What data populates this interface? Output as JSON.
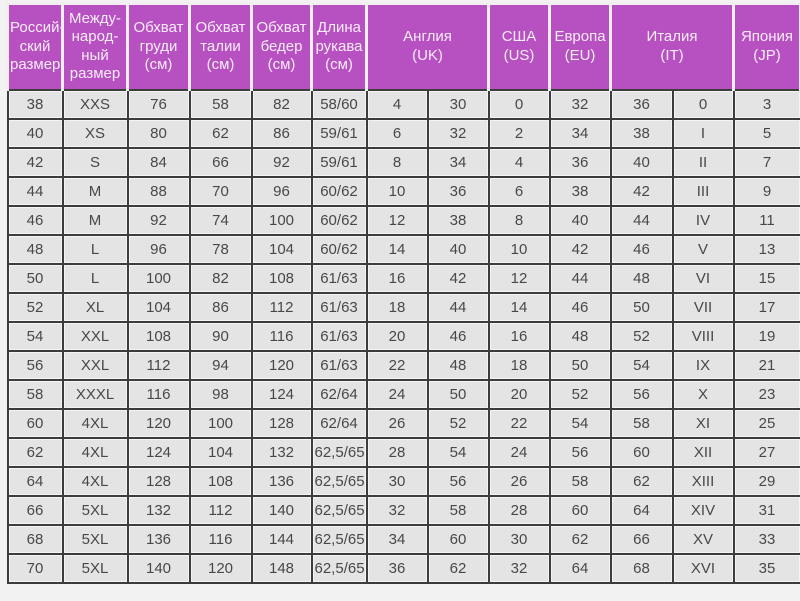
{
  "chart_data": {
    "type": "table",
    "colors": {
      "header_bg": "#b751c2",
      "header_fg": "#f8ecf9",
      "cell_bg": "#e4e4e4",
      "grid_border": "#3c3c3c",
      "page_bg": "#f2f2f2"
    },
    "headers": [
      {
        "label": "Россий-\nский\nразмер",
        "colspan": 1
      },
      {
        "label": "Между-\nнарод-\nный\nразмер",
        "colspan": 1
      },
      {
        "label": "Обхват\nгруди\n(см)",
        "colspan": 1
      },
      {
        "label": "Обхват\nталии\n(см)",
        "colspan": 1
      },
      {
        "label": "Обхват\nбедер\n(см)",
        "colspan": 1
      },
      {
        "label": "Длина\nрукава\n(см)",
        "colspan": 1
      },
      {
        "label": "Англия\n(UK)",
        "colspan": 2
      },
      {
        "label": "США\n(US)",
        "colspan": 1
      },
      {
        "label": "Европа\n(EU)",
        "colspan": 1
      },
      {
        "label": "Италия\n(IT)",
        "colspan": 2
      },
      {
        "label": "Япония\n(JP)",
        "colspan": 1
      }
    ],
    "rows": [
      [
        "38",
        "XXS",
        "76",
        "58",
        "82",
        "58/60",
        "4",
        "30",
        "0",
        "32",
        "36",
        "0",
        "3"
      ],
      [
        "40",
        "XS",
        "80",
        "62",
        "86",
        "59/61",
        "6",
        "32",
        "2",
        "34",
        "38",
        "I",
        "5"
      ],
      [
        "42",
        "S",
        "84",
        "66",
        "92",
        "59/61",
        "8",
        "34",
        "4",
        "36",
        "40",
        "II",
        "7"
      ],
      [
        "44",
        "M",
        "88",
        "70",
        "96",
        "60/62",
        "10",
        "36",
        "6",
        "38",
        "42",
        "III",
        "9"
      ],
      [
        "46",
        "M",
        "92",
        "74",
        "100",
        "60/62",
        "12",
        "38",
        "8",
        "40",
        "44",
        "IV",
        "11"
      ],
      [
        "48",
        "L",
        "96",
        "78",
        "104",
        "60/62",
        "14",
        "40",
        "10",
        "42",
        "46",
        "V",
        "13"
      ],
      [
        "50",
        "L",
        "100",
        "82",
        "108",
        "61/63",
        "16",
        "42",
        "12",
        "44",
        "48",
        "VI",
        "15"
      ],
      [
        "52",
        "XL",
        "104",
        "86",
        "112",
        "61/63",
        "18",
        "44",
        "14",
        "46",
        "50",
        "VII",
        "17"
      ],
      [
        "54",
        "XXL",
        "108",
        "90",
        "116",
        "61/63",
        "20",
        "46",
        "16",
        "48",
        "52",
        "VIII",
        "19"
      ],
      [
        "56",
        "XXL",
        "112",
        "94",
        "120",
        "61/63",
        "22",
        "48",
        "18",
        "50",
        "54",
        "IX",
        "21"
      ],
      [
        "58",
        "XXXL",
        "116",
        "98",
        "124",
        "62/64",
        "24",
        "50",
        "20",
        "52",
        "56",
        "X",
        "23"
      ],
      [
        "60",
        "4XL",
        "120",
        "100",
        "128",
        "62/64",
        "26",
        "52",
        "22",
        "54",
        "58",
        "XI",
        "25"
      ],
      [
        "62",
        "4XL",
        "124",
        "104",
        "132",
        "62,5/65",
        "28",
        "54",
        "24",
        "56",
        "60",
        "XII",
        "27"
      ],
      [
        "64",
        "4XL",
        "128",
        "108",
        "136",
        "62,5/65",
        "30",
        "56",
        "26",
        "58",
        "62",
        "XIII",
        "29"
      ],
      [
        "66",
        "5XL",
        "132",
        "112",
        "140",
        "62,5/65",
        "32",
        "58",
        "28",
        "60",
        "64",
        "XIV",
        "31"
      ],
      [
        "68",
        "5XL",
        "136",
        "116",
        "144",
        "62,5/65",
        "34",
        "60",
        "30",
        "62",
        "66",
        "XV",
        "33"
      ],
      [
        "70",
        "5XL",
        "140",
        "120",
        "148",
        "62,5/65",
        "36",
        "62",
        "32",
        "64",
        "68",
        "XVI",
        "35"
      ]
    ]
  }
}
